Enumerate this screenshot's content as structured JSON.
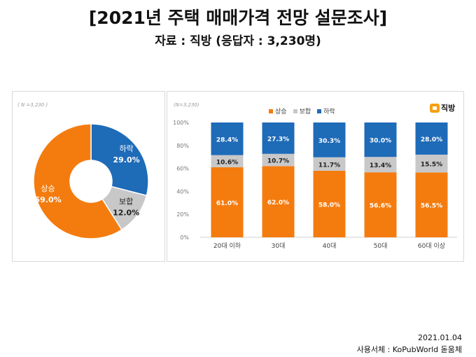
{
  "title": "[2021년 주택 매매가격 전망 설문조사]",
  "subtitle": "자료 : 직방 (응답자 : 3,230명)",
  "pie_note": "( N =3,230 )",
  "bar_note": "(N=3,230)",
  "logo_text": "직방",
  "date": "2021.01.04",
  "font_credit": "사용서체 : KoPubWorld 돋움체",
  "colors": {
    "up": "#f47c0f",
    "hold": "#c8c8c8",
    "down": "#1e6bb8"
  },
  "chart_data": [
    {
      "type": "pie",
      "variant": "donut",
      "slices": [
        {
          "label": "하락",
          "value": 29.0,
          "display": "29.0%",
          "color": "#1e6bb8"
        },
        {
          "label": "보합",
          "value": 12.0,
          "display": "12.0%",
          "color": "#c8c8c8"
        },
        {
          "label": "상승",
          "value": 59.0,
          "display": "59.0%",
          "color": "#f47c0f"
        }
      ]
    },
    {
      "type": "bar",
      "stacked": true,
      "categories": [
        "20대 이하",
        "30대",
        "40대",
        "50대",
        "60대 이상"
      ],
      "series": [
        {
          "name": "상승",
          "color": "#f47c0f",
          "values": [
            61.0,
            62.0,
            58.0,
            56.6,
            56.5
          ]
        },
        {
          "name": "보합",
          "color": "#c8c8c8",
          "values": [
            10.6,
            10.7,
            11.7,
            13.4,
            15.5
          ]
        },
        {
          "name": "하락",
          "color": "#1e6bb8",
          "values": [
            28.4,
            27.3,
            30.3,
            30.0,
            28.0
          ]
        }
      ],
      "yticks": [
        "0%",
        "20%",
        "40%",
        "60%",
        "80%",
        "100%"
      ],
      "ylim": [
        0,
        100
      ],
      "legend_position": "top-center"
    }
  ]
}
